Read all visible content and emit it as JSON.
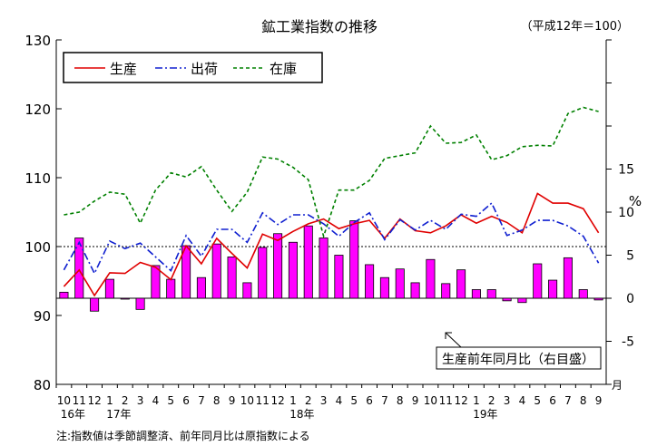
{
  "chart_data": {
    "type": "line",
    "title": "鉱工業指数の推移",
    "base_note": "（平成12年＝100）",
    "y_left": {
      "range": [
        80,
        130
      ],
      "ticks": [
        80,
        90,
        100,
        110,
        120,
        130
      ]
    },
    "y_right": {
      "unit": "%",
      "range": [
        -10,
        30
      ],
      "ticks": [
        15,
        10,
        5,
        0,
        -5
      ]
    },
    "month_labels": [
      "10",
      "11",
      "12",
      "1",
      "2",
      "3",
      "4",
      "5",
      "6",
      "7",
      "8",
      "9",
      "10",
      "11",
      "12",
      "1",
      "2",
      "3",
      "4",
      "5",
      "6",
      "7",
      "8",
      "9",
      "10",
      "11",
      "12",
      "1",
      "2",
      "3",
      "4",
      "5",
      "6",
      "7",
      "8",
      "9"
    ],
    "year_labels": [
      {
        "text": "16年",
        "index": 0
      },
      {
        "text": "17年",
        "index": 3
      },
      {
        "text": "18年",
        "index": 15
      },
      {
        "text": "19年",
        "index": 27
      }
    ],
    "month_unit": "月",
    "reference_line": 100,
    "series": [
      {
        "name": "生産",
        "style": "solid",
        "color": "#e00000",
        "values": [
          94.2,
          96.6,
          92.9,
          96.2,
          96.1,
          97.7,
          97.0,
          95.2,
          100.1,
          97.5,
          101.2,
          99.0,
          96.9,
          101.8,
          100.9,
          102.2,
          103.3,
          104.0,
          102.6,
          103.3,
          103.8,
          101.2,
          104.0,
          102.3,
          102.0,
          103.0,
          104.6,
          103.4,
          104.4,
          103.5,
          102.0,
          107.7,
          106.3,
          106.3,
          105.5,
          102.0
        ]
      },
      {
        "name": "出荷",
        "style": "dashdot",
        "color": "#1020d0",
        "values": [
          96.6,
          100.6,
          96.1,
          100.8,
          99.7,
          100.5,
          98.5,
          96.5,
          101.6,
          98.6,
          102.5,
          102.5,
          100.6,
          104.9,
          103.2,
          104.6,
          104.6,
          103.3,
          101.5,
          103.5,
          104.9,
          101.0,
          103.9,
          102.4,
          103.8,
          102.5,
          104.7,
          104.4,
          106.3,
          101.6,
          102.4,
          103.8,
          103.8,
          103.0,
          101.5,
          97.6
        ]
      },
      {
        "name": "在庫",
        "style": "dashed",
        "color": "#008000",
        "values": [
          104.6,
          105.0,
          106.6,
          107.9,
          107.6,
          103.4,
          108.2,
          110.7,
          110.1,
          111.6,
          108.2,
          105.1,
          107.9,
          113.0,
          112.7,
          111.5,
          109.7,
          101.5,
          108.2,
          108.2,
          109.6,
          112.8,
          113.2,
          113.6,
          117.5,
          115.0,
          115.1,
          116.2,
          112.6,
          113.2,
          114.5,
          114.7,
          114.6,
          119.3,
          120.2,
          119.6
        ]
      }
    ],
    "bars": {
      "name": "生産前年同月比（右目盛）",
      "color": "#ff00ff",
      "values": [
        0.7,
        7.0,
        -1.5,
        2.2,
        0.0,
        -1.3,
        3.8,
        2.2,
        6.1,
        2.4,
        6.3,
        4.8,
        1.8,
        5.9,
        7.5,
        6.5,
        8.4,
        7.0,
        5.0,
        9.0,
        3.9,
        2.4,
        3.4,
        1.8,
        4.5,
        1.7,
        3.3,
        1.0,
        1.0,
        -0.3,
        -0.5,
        4.0,
        2.1,
        4.7,
        1.0,
        -0.2
      ]
    },
    "legend_position": "top-left",
    "footnote": "注:指数値は季節調整済、前年同月比は原指数による"
  }
}
